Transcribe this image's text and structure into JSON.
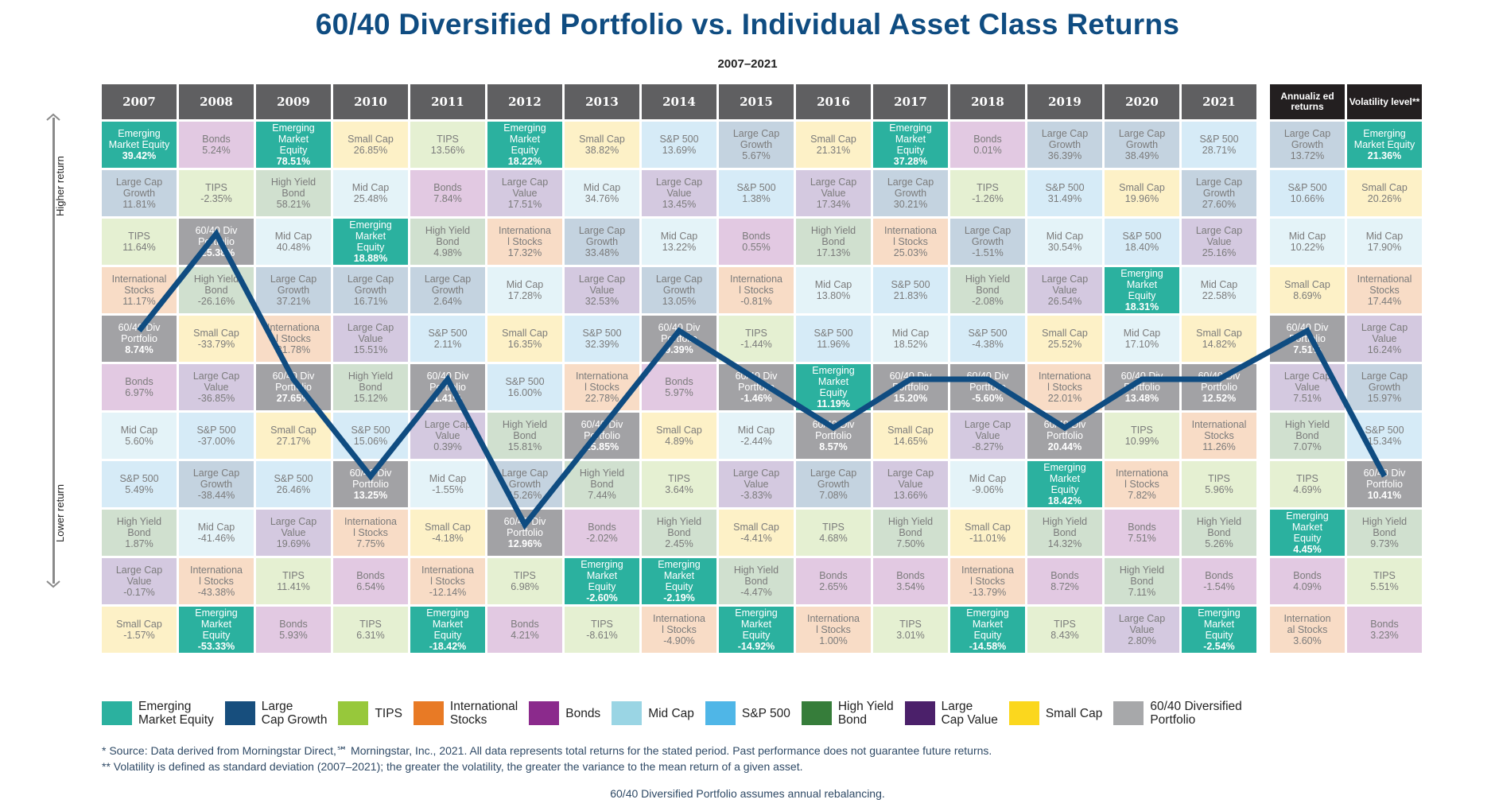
{
  "title": "60/40 Diversified Portfolio vs. Individual Asset Class Returns",
  "subtitle": "2007–2021",
  "axis": {
    "top_label": "Higher return",
    "bottom_label": "Lower return"
  },
  "asset_colors": {
    "Emerging Market Equity": {
      "cell": "#2bb19f",
      "legend": "#2bb19f",
      "light_text": true
    },
    "Large Cap Growth": {
      "cell": "#c4d3e0",
      "legend": "#174e7d"
    },
    "TIPS": {
      "cell": "#e5f0d2",
      "legend": "#97c83b"
    },
    "International Stocks": {
      "cell": "#f8dcc6",
      "legend": "#e87a25"
    },
    "Bonds": {
      "cell": "#e2c9e2",
      "legend": "#8b2a8c"
    },
    "Mid Cap": {
      "cell": "#e4f3f8",
      "legend": "#9ad5e4"
    },
    "S&P 500": {
      "cell": "#d6ebf7",
      "legend": "#4fb6e7"
    },
    "High Yield Bond": {
      "cell": "#d0e0cf",
      "legend": "#367d3a"
    },
    "Large Cap Value": {
      "cell": "#d4c9e0",
      "legend": "#4b206a"
    },
    "Small Cap": {
      "cell": "#fdf1c7",
      "legend": "#fbd71e"
    },
    "60/40 Diversified Portfolio": {
      "cell": "#a2a2a5",
      "legend": "#a7a8aa",
      "light_text": true
    }
  },
  "legend": [
    {
      "label": "Emerging Market Equity",
      "line1": "Emerging",
      "line2": "Market Equity",
      "color": "#2bb19f"
    },
    {
      "label": "Large Cap Growth",
      "line1": "Large",
      "line2": "Cap Growth",
      "color": "#174e7d"
    },
    {
      "label": "TIPS",
      "line1": "TIPS",
      "line2": "",
      "color": "#97c83b"
    },
    {
      "label": "International Stocks",
      "line1": "International",
      "line2": "Stocks",
      "color": "#e87a25"
    },
    {
      "label": "Bonds",
      "line1": "Bonds",
      "line2": "",
      "color": "#8b2a8c"
    },
    {
      "label": "Mid Cap",
      "line1": "Mid Cap",
      "line2": "",
      "color": "#9ad5e4"
    },
    {
      "label": "S&P 500",
      "line1": "S&P 500",
      "line2": "",
      "color": "#4fb6e7"
    },
    {
      "label": "High Yield Bond",
      "line1": "High Yield",
      "line2": "Bond",
      "color": "#367d3a"
    },
    {
      "label": "Large Cap Value",
      "line1": "Large",
      "line2": "Cap Value",
      "color": "#4b206a"
    },
    {
      "label": "Small Cap",
      "line1": "Small Cap",
      "line2": "",
      "color": "#fbd71e"
    },
    {
      "label": "60/40 Diversified Portfolio",
      "line1": "60/40 Diversified",
      "line2": "Portfolio",
      "color": "#a7a8aa"
    }
  ],
  "footnotes": {
    "source": "*  Source: Data derived from Morningstar Direct,℠ Morningstar, Inc., 2021. All data represents total returns for the stated period. Past performance does not guarantee future returns.",
    "volatility": "**  Volatility is defined as standard deviation (2007–2021); the greater the volatility, the greater the variance to the mean return of a given asset.",
    "rebalancing": "60/40 Diversified Portfolio assumes annual rebalancing."
  },
  "chart_data": {
    "type": "table",
    "title": "60/40 Diversified Portfolio vs. Individual Asset Class Returns",
    "subtitle": "2007–2021",
    "description": "Periodic table of asset class returns ranked highest to lowest each year; a line traces the 60/40 Diversified Portfolio rank.",
    "columns": [
      {
        "header": "2007",
        "cells": [
          [
            "Emerging Market Equity",
            "39.42%"
          ],
          [
            "Large Cap Growth",
            "11.81%"
          ],
          [
            "TIPS",
            "11.64%"
          ],
          [
            "International Stocks",
            "11.17%"
          ],
          [
            "60/40 Diversified Portfolio",
            "8.74%"
          ],
          [
            "Bonds",
            "6.97%"
          ],
          [
            "Mid Cap",
            "5.60%"
          ],
          [
            "S&P 500",
            "5.49%"
          ],
          [
            "High Yield Bond",
            "1.87%"
          ],
          [
            "Large Cap Value",
            "-0.17%"
          ],
          [
            "Small Cap",
            "-1.57%"
          ]
        ]
      },
      {
        "header": "2008",
        "cells": [
          [
            "Bonds",
            "5.24%"
          ],
          [
            "TIPS",
            "-2.35%"
          ],
          [
            "60/40 Diversified Portfolio",
            "-25.38%"
          ],
          [
            "High Yield Bond",
            "-26.16%"
          ],
          [
            "Small Cap",
            "-33.79%"
          ],
          [
            "Large Cap Value",
            "-36.85%"
          ],
          [
            "S&P 500",
            "-37.00%"
          ],
          [
            "Large Cap Growth",
            "-38.44%"
          ],
          [
            "Mid Cap",
            "-41.46%"
          ],
          [
            "International Stocks",
            "-43.38%"
          ],
          [
            "Emerging Market Equity",
            "-53.33%"
          ]
        ]
      },
      {
        "header": "2009",
        "cells": [
          [
            "Emerging Market Equity",
            "78.51%"
          ],
          [
            "High Yield Bond",
            "58.21%"
          ],
          [
            "Mid Cap",
            "40.48%"
          ],
          [
            "Large Cap Growth",
            "37.21%"
          ],
          [
            "International Stocks",
            "31.78%"
          ],
          [
            "60/40 Diversified Portfolio",
            "27.65%"
          ],
          [
            "Small Cap",
            "27.17%"
          ],
          [
            "S&P 500",
            "26.46%"
          ],
          [
            "Large Cap Value",
            "19.69%"
          ],
          [
            "TIPS",
            "11.41%"
          ],
          [
            "Bonds",
            "5.93%"
          ]
        ]
      },
      {
        "header": "2010",
        "cells": [
          [
            "Small Cap",
            "26.85%"
          ],
          [
            "Mid Cap",
            "25.48%"
          ],
          [
            "Emerging Market Equity",
            "18.88%"
          ],
          [
            "Large Cap Growth",
            "16.71%"
          ],
          [
            "Large Cap Value",
            "15.51%"
          ],
          [
            "High Yield Bond",
            "15.12%"
          ],
          [
            "S&P 500",
            "15.06%"
          ],
          [
            "60/40 Diversified Portfolio",
            "13.25%"
          ],
          [
            "International Stocks",
            "7.75%"
          ],
          [
            "Bonds",
            "6.54%"
          ],
          [
            "TIPS",
            "6.31%"
          ]
        ]
      },
      {
        "header": "2011",
        "cells": [
          [
            "TIPS",
            "13.56%"
          ],
          [
            "Bonds",
            "7.84%"
          ],
          [
            "High Yield Bond",
            "4.98%"
          ],
          [
            "Large Cap Growth",
            "2.64%"
          ],
          [
            "S&P 500",
            "2.11%"
          ],
          [
            "60/40 Diversified Portfolio",
            "1.41%"
          ],
          [
            "Large Cap Value",
            "0.39%"
          ],
          [
            "Mid Cap",
            "-1.55%"
          ],
          [
            "Small Cap",
            "-4.18%"
          ],
          [
            "International Stocks",
            "-12.14%"
          ],
          [
            "Emerging Market Equity",
            "-18.42%"
          ]
        ]
      },
      {
        "header": "2012",
        "cells": [
          [
            "Emerging Market Equity",
            "18.22%"
          ],
          [
            "Large Cap Value",
            "17.51%"
          ],
          [
            "International Stocks",
            "17.32%"
          ],
          [
            "Mid Cap",
            "17.28%"
          ],
          [
            "Small Cap",
            "16.35%"
          ],
          [
            "S&P 500",
            "16.00%"
          ],
          [
            "High Yield Bond",
            "15.81%"
          ],
          [
            "Large Cap Growth",
            "15.26%"
          ],
          [
            "60/40 Diversified Portfolio",
            "12.96%"
          ],
          [
            "TIPS",
            "6.98%"
          ],
          [
            "Bonds",
            "4.21%"
          ]
        ]
      },
      {
        "header": "2013",
        "cells": [
          [
            "Small Cap",
            "38.82%"
          ],
          [
            "Mid Cap",
            "34.76%"
          ],
          [
            "Large Cap Growth",
            "33.48%"
          ],
          [
            "Large Cap Value",
            "32.53%"
          ],
          [
            "S&P 500",
            "32.39%"
          ],
          [
            "International Stocks",
            "22.78%"
          ],
          [
            "60/40 Diversified Portfolio",
            "15.85%"
          ],
          [
            "High Yield Bond",
            "7.44%"
          ],
          [
            "Bonds",
            "-2.02%"
          ],
          [
            "Emerging Market Equity",
            "-2.60%"
          ],
          [
            "TIPS",
            "-8.61%"
          ]
        ]
      },
      {
        "header": "2014",
        "cells": [
          [
            "S&P 500",
            "13.69%"
          ],
          [
            "Large Cap Value",
            "13.45%"
          ],
          [
            "Mid Cap",
            "13.22%"
          ],
          [
            "Large Cap Growth",
            "13.05%"
          ],
          [
            "60/40 Diversified Portfolio",
            "9.39%"
          ],
          [
            "Bonds",
            "5.97%"
          ],
          [
            "Small Cap",
            "4.89%"
          ],
          [
            "TIPS",
            "3.64%"
          ],
          [
            "High Yield Bond",
            "2.45%"
          ],
          [
            "Emerging Market Equity",
            "-2.19%"
          ],
          [
            "International Stocks",
            "-4.90%"
          ]
        ]
      },
      {
        "header": "2015",
        "cells": [
          [
            "Large Cap Growth",
            "5.67%"
          ],
          [
            "S&P 500",
            "1.38%"
          ],
          [
            "Bonds",
            "0.55%"
          ],
          [
            "International Stocks",
            "-0.81%"
          ],
          [
            "TIPS",
            "-1.44%"
          ],
          [
            "60/40 Diversified Portfolio",
            "-1.46%"
          ],
          [
            "Mid Cap",
            "-2.44%"
          ],
          [
            "Large Cap Value",
            "-3.83%"
          ],
          [
            "Small Cap",
            "-4.41%"
          ],
          [
            "High Yield Bond",
            "-4.47%"
          ],
          [
            "Emerging Market Equity",
            "-14.92%"
          ]
        ]
      },
      {
        "header": "2016",
        "cells": [
          [
            "Small Cap",
            "21.31%"
          ],
          [
            "Large Cap Value",
            "17.34%"
          ],
          [
            "High Yield Bond",
            "17.13%"
          ],
          [
            "Mid Cap",
            "13.80%"
          ],
          [
            "S&P 500",
            "11.96%"
          ],
          [
            "Emerging Market Equity",
            "11.19%"
          ],
          [
            "60/40 Diversified Portfolio",
            "8.57%"
          ],
          [
            "Large Cap Growth",
            "7.08%"
          ],
          [
            "TIPS",
            "4.68%"
          ],
          [
            "Bonds",
            "2.65%"
          ],
          [
            "International Stocks",
            "1.00%"
          ]
        ]
      },
      {
        "header": "2017",
        "cells": [
          [
            "Emerging Market Equity",
            "37.28%"
          ],
          [
            "Large Cap Growth",
            "30.21%"
          ],
          [
            "International Stocks",
            "25.03%"
          ],
          [
            "S&P 500",
            "21.83%"
          ],
          [
            "Mid Cap",
            "18.52%"
          ],
          [
            "60/40 Diversified Portfolio",
            "15.20%"
          ],
          [
            "Small Cap",
            "14.65%"
          ],
          [
            "Large Cap Value",
            "13.66%"
          ],
          [
            "High Yield Bond",
            "7.50%"
          ],
          [
            "Bonds",
            "3.54%"
          ],
          [
            "TIPS",
            "3.01%"
          ]
        ]
      },
      {
        "header": "2018",
        "cells": [
          [
            "Bonds",
            "0.01%"
          ],
          [
            "TIPS",
            "-1.26%"
          ],
          [
            "Large Cap Growth",
            "-1.51%"
          ],
          [
            "High Yield Bond",
            "-2.08%"
          ],
          [
            "S&P 500",
            "-4.38%"
          ],
          [
            "60/40 Diversified Portfolio",
            "-5.60%"
          ],
          [
            "Large Cap Value",
            "-8.27%"
          ],
          [
            "Mid Cap",
            "-9.06%"
          ],
          [
            "Small Cap",
            "-11.01%"
          ],
          [
            "International Stocks",
            "-13.79%"
          ],
          [
            "Emerging Market Equity",
            "-14.58%"
          ]
        ]
      },
      {
        "header": "2019",
        "cells": [
          [
            "Large Cap Growth",
            "36.39%"
          ],
          [
            "S&P 500",
            "31.49%"
          ],
          [
            "Mid Cap",
            "30.54%"
          ],
          [
            "Large Cap Value",
            "26.54%"
          ],
          [
            "Small Cap",
            "25.52%"
          ],
          [
            "International Stocks",
            "22.01%"
          ],
          [
            "60/40 Diversified Portfolio",
            "20.44%"
          ],
          [
            "Emerging Market Equity",
            "18.42%"
          ],
          [
            "High Yield Bond",
            "14.32%"
          ],
          [
            "Bonds",
            "8.72%"
          ],
          [
            "TIPS",
            "8.43%"
          ]
        ]
      },
      {
        "header": "2020",
        "cells": [
          [
            "Large Cap Growth",
            "38.49%"
          ],
          [
            "Small Cap",
            "19.96%"
          ],
          [
            "S&P 500",
            "18.40%"
          ],
          [
            "Emerging Market Equity",
            "18.31%"
          ],
          [
            "Mid Cap",
            "17.10%"
          ],
          [
            "60/40 Diversified Portfolio",
            "13.48%"
          ],
          [
            "TIPS",
            "10.99%"
          ],
          [
            "International Stocks",
            "7.82%"
          ],
          [
            "Bonds",
            "7.51%"
          ],
          [
            "High Yield Bond",
            "7.11%"
          ],
          [
            "Large Cap Value",
            "2.80%"
          ]
        ]
      },
      {
        "header": "2021",
        "cells": [
          [
            "S&P 500",
            "28.71%"
          ],
          [
            "Large Cap Growth",
            "27.60%"
          ],
          [
            "Large Cap Value",
            "25.16%"
          ],
          [
            "Mid Cap",
            "22.58%"
          ],
          [
            "Small Cap",
            "14.82%"
          ],
          [
            "60/40 Diversified Portfolio",
            "12.52%"
          ],
          [
            "International Stocks",
            "11.26%"
          ],
          [
            "TIPS",
            "5.96%"
          ],
          [
            "High Yield Bond",
            "5.26%"
          ],
          [
            "Bonds",
            "-1.54%"
          ],
          [
            "Emerging Market Equity",
            "-2.54%"
          ]
        ]
      },
      {
        "header": "Annualized returns",
        "header_display": "Annualiz ed returns",
        "cells": [
          [
            "Large Cap Growth",
            "13.72%"
          ],
          [
            "S&P 500",
            "10.66%"
          ],
          [
            "Mid Cap",
            "10.22%"
          ],
          [
            "Small Cap",
            "8.69%"
          ],
          [
            "60/40 Diversified Portfolio",
            "7.51%"
          ],
          [
            "Large Cap Value",
            "7.51%"
          ],
          [
            "High Yield Bond",
            "7.07%"
          ],
          [
            "TIPS",
            "4.69%"
          ],
          [
            "Emerging Market Equity",
            "4.45%"
          ],
          [
            "Bonds",
            "4.09%"
          ],
          [
            "International Stocks",
            "3.60%"
          ]
        ]
      },
      {
        "header": "Volatility level**",
        "header_display": "Volatility level**",
        "cells": [
          [
            "Emerging Market Equity",
            "21.36%"
          ],
          [
            "Small Cap",
            "20.26%"
          ],
          [
            "Mid Cap",
            "17.90%"
          ],
          [
            "International Stocks",
            "17.44%"
          ],
          [
            "Large Cap Value",
            "16.24%"
          ],
          [
            "Large Cap Growth",
            "15.97%"
          ],
          [
            "S&P 500",
            "15.34%"
          ],
          [
            "60/40 Diversified Portfolio",
            "10.41%"
          ],
          [
            "High Yield Bond",
            "9.73%"
          ],
          [
            "TIPS",
            "5.51%"
          ],
          [
            "Bonds",
            "3.23%"
          ]
        ]
      }
    ],
    "portfolio_rank_line": {
      "color": "#0f4c81",
      "ranks": [
        5,
        3,
        6,
        8,
        6,
        9,
        7,
        5,
        6,
        7,
        6,
        6,
        7,
        6,
        6,
        5,
        8
      ]
    }
  }
}
